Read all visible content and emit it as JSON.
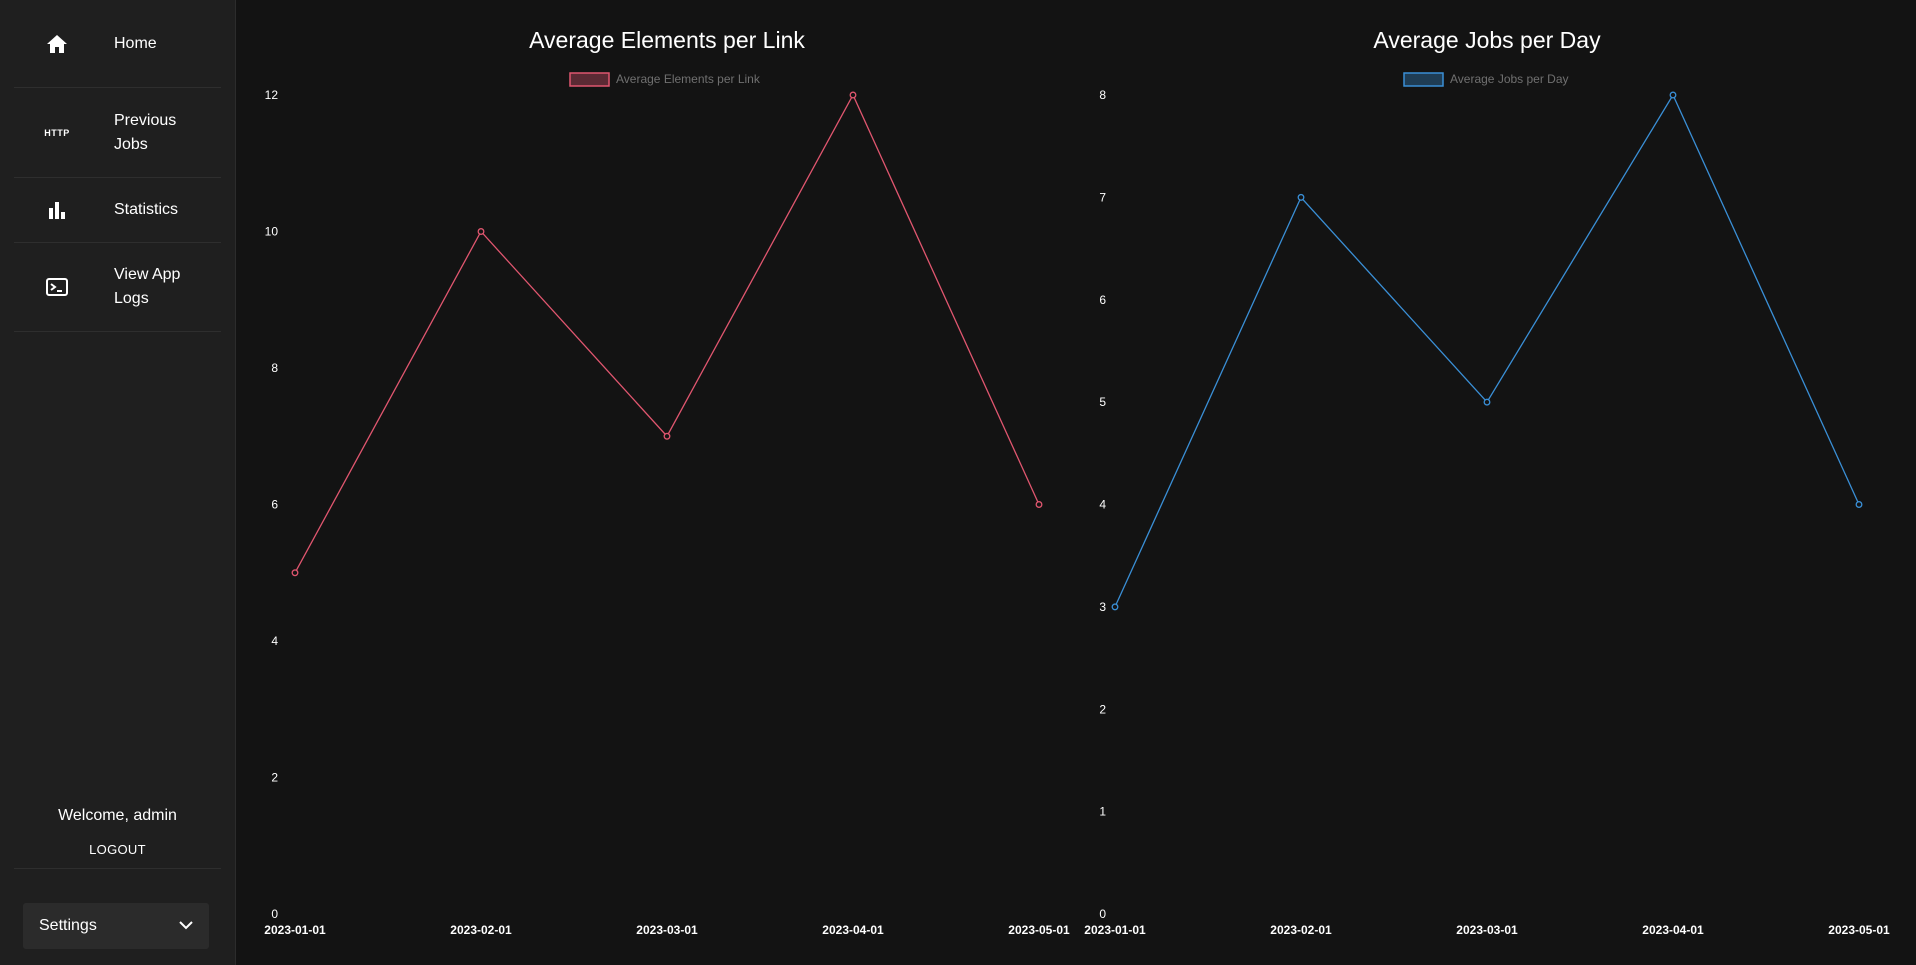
{
  "sidebar": {
    "items": [
      {
        "label": "Home",
        "icon": "home-icon"
      },
      {
        "label": "Previous Jobs",
        "icon": "http-icon",
        "icon_text": "HTTP"
      },
      {
        "label": "Statistics",
        "icon": "bar-chart-icon"
      },
      {
        "label": "View App Logs",
        "icon": "terminal-icon"
      }
    ],
    "welcome": "Welcome, admin",
    "logout": "LOGOUT",
    "settings": {
      "label": "Settings",
      "icon": "chevron-down-icon"
    }
  },
  "colors": {
    "background": "#131313",
    "sidebar": "#1f1f1f",
    "series1": "#e0566f",
    "series2": "#3a8fd6"
  },
  "chart_data": [
    {
      "type": "line",
      "title": "Average Elements per Link",
      "legend": "top",
      "grid": false,
      "x": [
        "2023-01-01",
        "2023-02-01",
        "2023-03-01",
        "2023-04-01",
        "2023-05-01"
      ],
      "series": [
        {
          "name": "Average Elements per Link",
          "values": [
            5,
            10,
            7,
            12,
            6
          ],
          "color": "#e0566f"
        }
      ],
      "ylim": [
        0,
        12
      ],
      "yticks": [
        "0",
        "2",
        "4",
        "6",
        "8",
        "10",
        "12"
      ]
    },
    {
      "type": "line",
      "title": "Average Jobs per Day",
      "legend": "top",
      "grid": false,
      "x": [
        "2023-01-01",
        "2023-02-01",
        "2023-03-01",
        "2023-04-01",
        "2023-05-01"
      ],
      "series": [
        {
          "name": "Average Jobs per Day",
          "values": [
            3,
            7,
            5,
            8,
            4
          ],
          "color": "#3a8fd6"
        }
      ],
      "ylim": [
        0,
        8
      ],
      "yticks": [
        "0",
        "1",
        "2",
        "3",
        "4",
        "5",
        "6",
        "7",
        "8"
      ]
    }
  ]
}
